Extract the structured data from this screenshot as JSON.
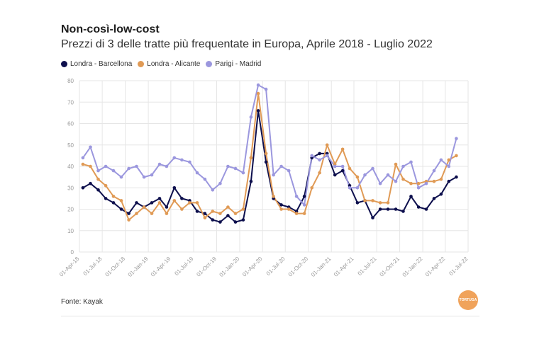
{
  "header": {
    "title": "Non-così-low-cost",
    "subtitle": "Prezzi di 3 delle tratte più frequentate in Europa, Aprile 2018 - Luglio 2022"
  },
  "source": "Fonte: Kayak",
  "logo_text": "TORTUGA",
  "colors": {
    "barcellona": "#0d0f4d",
    "alicante": "#e09a55",
    "madrid": "#9b97de",
    "grid": "#e6e6e6",
    "tick": "#999999"
  },
  "chart_data": {
    "type": "line",
    "title": "Prezzi di 3 delle tratte più frequentate in Europa, Aprile 2018 - Luglio 2022",
    "ylim": [
      0,
      80
    ],
    "y_ticks": [
      0,
      10,
      20,
      30,
      40,
      50,
      60,
      70,
      80
    ],
    "x_tick_labels": [
      "01-Apr-18",
      "01-Jul-18",
      "01-Oct-18",
      "01-Jan-19",
      "01-Apr-19",
      "01-Jul-19",
      "01-Oct-19",
      "01-Jan-20",
      "01-Apr-20",
      "01-Jul-20",
      "01-Oct-20",
      "01-Jan-21",
      "01-Apr-21",
      "01-Jul-21",
      "01-Oct-21",
      "01-Jan-22",
      "01-Apr-22",
      "01-Jul-22"
    ],
    "x_range": [
      "2018-04-01",
      "2022-07-01"
    ],
    "grid": true,
    "legend_position": "top-left",
    "series": [
      {
        "name": "Londra - Barcellona",
        "color": "#0d0f4d",
        "points": [
          [
            "2018-04-15",
            30
          ],
          [
            "2018-05-15",
            32
          ],
          [
            "2018-06-15",
            29
          ],
          [
            "2018-07-15",
            25
          ],
          [
            "2018-08-15",
            23
          ],
          [
            "2018-09-15",
            20
          ],
          [
            "2018-10-15",
            18
          ],
          [
            "2018-11-15",
            23
          ],
          [
            "2018-12-15",
            21
          ],
          [
            "2019-01-15",
            23
          ],
          [
            "2019-02-15",
            25
          ],
          [
            "2019-03-15",
            21
          ],
          [
            "2019-04-15",
            30
          ],
          [
            "2019-05-15",
            25
          ],
          [
            "2019-06-15",
            24
          ],
          [
            "2019-07-15",
            19
          ],
          [
            "2019-08-15",
            18
          ],
          [
            "2019-09-15",
            15
          ],
          [
            "2019-10-15",
            14
          ],
          [
            "2019-11-15",
            17
          ],
          [
            "2019-12-15",
            14
          ],
          [
            "2020-01-15",
            15
          ],
          [
            "2020-02-15",
            33
          ],
          [
            "2020-03-15",
            66
          ],
          [
            "2020-04-15",
            42
          ],
          [
            "2020-05-15",
            25
          ],
          [
            "2020-06-15",
            22
          ],
          [
            "2020-07-15",
            21
          ],
          [
            "2020-08-15",
            19
          ],
          [
            "2020-09-15",
            26
          ],
          [
            "2020-10-15",
            44
          ],
          [
            "2020-11-15",
            46
          ],
          [
            "2020-12-15",
            46
          ],
          [
            "2021-01-15",
            36
          ],
          [
            "2021-02-15",
            38
          ],
          [
            "2021-03-15",
            31
          ],
          [
            "2021-04-15",
            23
          ],
          [
            "2021-05-15",
            24
          ],
          [
            "2021-06-15",
            16
          ],
          [
            "2021-07-15",
            20
          ],
          [
            "2021-08-15",
            20
          ],
          [
            "2021-09-15",
            20
          ],
          [
            "2021-10-15",
            19
          ],
          [
            "2021-11-15",
            26
          ],
          [
            "2021-12-15",
            21
          ],
          [
            "2022-01-15",
            20
          ],
          [
            "2022-02-15",
            25
          ],
          [
            "2022-03-15",
            27
          ],
          [
            "2022-04-15",
            33
          ],
          [
            "2022-05-15",
            35
          ]
        ]
      },
      {
        "name": "Londra - Alicante",
        "color": "#e09a55",
        "points": [
          [
            "2018-04-15",
            41
          ],
          [
            "2018-05-15",
            40
          ],
          [
            "2018-06-15",
            34
          ],
          [
            "2018-07-15",
            31
          ],
          [
            "2018-08-15",
            26
          ],
          [
            "2018-09-15",
            24
          ],
          [
            "2018-10-15",
            15
          ],
          [
            "2018-11-15",
            18
          ],
          [
            "2018-12-15",
            21
          ],
          [
            "2019-01-15",
            18
          ],
          [
            "2019-02-15",
            23
          ],
          [
            "2019-03-15",
            18
          ],
          [
            "2019-04-15",
            24
          ],
          [
            "2019-05-15",
            20
          ],
          [
            "2019-06-15",
            23
          ],
          [
            "2019-07-15",
            23
          ],
          [
            "2019-08-15",
            16
          ],
          [
            "2019-09-15",
            19
          ],
          [
            "2019-10-15",
            18
          ],
          [
            "2019-11-15",
            21
          ],
          [
            "2019-12-15",
            18
          ],
          [
            "2020-01-15",
            20
          ],
          [
            "2020-02-15",
            44
          ],
          [
            "2020-03-15",
            74
          ],
          [
            "2020-04-15",
            46
          ],
          [
            "2020-05-15",
            26
          ],
          [
            "2020-06-15",
            20
          ],
          [
            "2020-07-15",
            20
          ],
          [
            "2020-08-15",
            18
          ],
          [
            "2020-09-15",
            18
          ],
          [
            "2020-10-15",
            30
          ],
          [
            "2020-11-15",
            37
          ],
          [
            "2020-12-15",
            50
          ],
          [
            "2021-01-15",
            41
          ],
          [
            "2021-02-15",
            48
          ],
          [
            "2021-03-15",
            39
          ],
          [
            "2021-04-15",
            35
          ],
          [
            "2021-05-15",
            24
          ],
          [
            "2021-06-15",
            24
          ],
          [
            "2021-07-15",
            23
          ],
          [
            "2021-08-15",
            23
          ],
          [
            "2021-09-15",
            41
          ],
          [
            "2021-10-15",
            34
          ],
          [
            "2021-11-15",
            32
          ],
          [
            "2021-12-15",
            32
          ],
          [
            "2022-01-15",
            33
          ],
          [
            "2022-02-15",
            33
          ],
          [
            "2022-03-15",
            34
          ],
          [
            "2022-04-15",
            43
          ],
          [
            "2022-05-15",
            45
          ]
        ]
      },
      {
        "name": "Parigi - Madrid",
        "color": "#9b97de",
        "points": [
          [
            "2018-04-15",
            44
          ],
          [
            "2018-05-15",
            49
          ],
          [
            "2018-06-15",
            38
          ],
          [
            "2018-07-15",
            40
          ],
          [
            "2018-08-15",
            38
          ],
          [
            "2018-09-15",
            35
          ],
          [
            "2018-10-15",
            39
          ],
          [
            "2018-11-15",
            40
          ],
          [
            "2018-12-15",
            35
          ],
          [
            "2019-01-15",
            36
          ],
          [
            "2019-02-15",
            41
          ],
          [
            "2019-03-15",
            40
          ],
          [
            "2019-04-15",
            44
          ],
          [
            "2019-05-15",
            43
          ],
          [
            "2019-06-15",
            42
          ],
          [
            "2019-07-15",
            37
          ],
          [
            "2019-08-15",
            34
          ],
          [
            "2019-09-15",
            29
          ],
          [
            "2019-10-15",
            32
          ],
          [
            "2019-11-15",
            40
          ],
          [
            "2019-12-15",
            39
          ],
          [
            "2020-01-15",
            37
          ],
          [
            "2020-02-15",
            63
          ],
          [
            "2020-03-15",
            78
          ],
          [
            "2020-04-15",
            76
          ],
          [
            "2020-05-15",
            36
          ],
          [
            "2020-06-15",
            40
          ],
          [
            "2020-07-15",
            38
          ],
          [
            "2020-08-15",
            26
          ],
          [
            "2020-09-15",
            22
          ],
          [
            "2020-10-15",
            45
          ],
          [
            "2020-11-15",
            43
          ],
          [
            "2020-12-15",
            45
          ],
          [
            "2021-01-15",
            40
          ],
          [
            "2021-02-15",
            40
          ],
          [
            "2021-03-15",
            30
          ],
          [
            "2021-04-15",
            30
          ],
          [
            "2021-05-15",
            36
          ],
          [
            "2021-06-15",
            39
          ],
          [
            "2021-07-15",
            32
          ],
          [
            "2021-08-15",
            36
          ],
          [
            "2021-09-15",
            33
          ],
          [
            "2021-10-15",
            40
          ],
          [
            "2021-11-15",
            42
          ],
          [
            "2021-12-15",
            30
          ],
          [
            "2022-01-15",
            32
          ],
          [
            "2022-02-15",
            38
          ],
          [
            "2022-03-15",
            43
          ],
          [
            "2022-04-15",
            40
          ],
          [
            "2022-05-15",
            53
          ]
        ]
      }
    ]
  }
}
